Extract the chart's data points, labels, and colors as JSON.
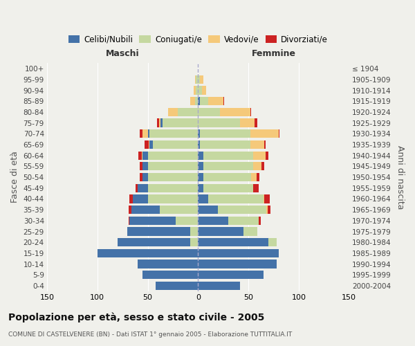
{
  "age_groups_bottom_to_top": [
    "0-4",
    "5-9",
    "10-14",
    "15-19",
    "20-24",
    "25-29",
    "30-34",
    "35-39",
    "40-44",
    "45-49",
    "50-54",
    "55-59",
    "60-64",
    "65-69",
    "70-74",
    "75-79",
    "80-84",
    "85-89",
    "90-94",
    "95-99",
    "100+"
  ],
  "birth_years_bottom_to_top": [
    "2000-2004",
    "1995-1999",
    "1990-1994",
    "1985-1989",
    "1980-1984",
    "1975-1979",
    "1970-1974",
    "1965-1969",
    "1960-1964",
    "1955-1959",
    "1950-1954",
    "1945-1949",
    "1940-1944",
    "1935-1939",
    "1930-1934",
    "1925-1929",
    "1920-1924",
    "1915-1919",
    "1910-1914",
    "1905-1909",
    "≤ 1904"
  ],
  "maschi_celibi": [
    42,
    55,
    60,
    100,
    72,
    62,
    46,
    28,
    15,
    10,
    5,
    5,
    5,
    3,
    2,
    2,
    0,
    0,
    0,
    0,
    0
  ],
  "maschi_coniugati": [
    0,
    0,
    0,
    0,
    8,
    8,
    22,
    38,
    50,
    50,
    50,
    50,
    50,
    45,
    48,
    35,
    20,
    3,
    2,
    2,
    0
  ],
  "maschi_vedovi": [
    0,
    0,
    0,
    0,
    0,
    0,
    0,
    0,
    0,
    0,
    0,
    0,
    1,
    1,
    5,
    2,
    10,
    5,
    2,
    1,
    0
  ],
  "maschi_divorziati": [
    0,
    0,
    0,
    0,
    0,
    0,
    1,
    3,
    3,
    2,
    3,
    3,
    3,
    4,
    3,
    2,
    0,
    0,
    0,
    0,
    0
  ],
  "femmine_nubili": [
    42,
    65,
    78,
    80,
    70,
    45,
    30,
    20,
    10,
    5,
    5,
    5,
    5,
    2,
    2,
    0,
    0,
    2,
    0,
    0,
    0
  ],
  "femmine_coniugate": [
    0,
    0,
    0,
    0,
    8,
    14,
    30,
    48,
    55,
    50,
    48,
    50,
    50,
    50,
    50,
    42,
    22,
    8,
    4,
    2,
    0
  ],
  "femmine_vedove": [
    0,
    0,
    0,
    0,
    0,
    0,
    0,
    1,
    1,
    0,
    5,
    8,
    12,
    14,
    28,
    14,
    30,
    15,
    4,
    3,
    0
  ],
  "femmine_divorziate": [
    0,
    0,
    0,
    0,
    0,
    0,
    2,
    3,
    5,
    5,
    3,
    3,
    3,
    1,
    1,
    3,
    1,
    1,
    0,
    0,
    0
  ],
  "colors": {
    "celibi": "#4472a8",
    "coniugati": "#c5d8a0",
    "vedovi": "#f5c97a",
    "divorziati": "#cc2222"
  },
  "xlim": 150,
  "title": "Popolazione per età, sesso e stato civile - 2005",
  "subtitle": "COMUNE DI CASTELVENERE (BN) - Dati ISTAT 1° gennaio 2005 - Elaborazione TUTTITALIA.IT",
  "ylabel_left": "Fasce di età",
  "ylabel_right": "Anni di nascita",
  "xlabel_left": "Maschi",
  "xlabel_right": "Femmine",
  "bg_color": "#f0f0eb"
}
